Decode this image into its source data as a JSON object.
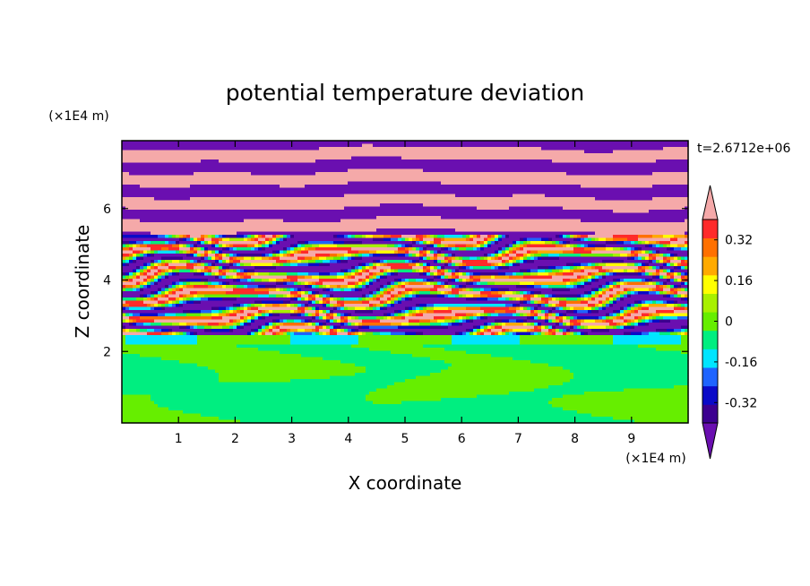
{
  "chart_data": {
    "type": "heatmap",
    "title": "potential temperature deviation",
    "xlabel": "X coordinate",
    "ylabel": "Z coordinate",
    "x_unit": "(×1E4 m)",
    "y_unit": "(×1E4 m)",
    "time_label": "t=2.6712e+06",
    "xlim": [
      0,
      10
    ],
    "ylim": [
      0,
      7.9
    ],
    "x_ticks": [
      1,
      2,
      3,
      4,
      5,
      6,
      7,
      8,
      9
    ],
    "y_ticks": [
      2,
      4,
      6
    ],
    "colorbar": {
      "levels": [
        -0.48,
        -0.4,
        -0.32,
        -0.24,
        -0.16,
        -0.08,
        0,
        0.08,
        0.16,
        0.24,
        0.32,
        0.4,
        0.48
      ],
      "colors": [
        "#6a0fb0",
        "#3c0090",
        "#0a0ac8",
        "#1e64ff",
        "#00e5ff",
        "#00ee80",
        "#66ee00",
        "#a8f000",
        "#ffff00",
        "#ffaa00",
        "#ff7000",
        "#ff2a2a",
        "#f5a9a9"
      ],
      "tick_labels": [
        "0.32",
        "0.16",
        "0",
        "-0.16",
        "-0.32"
      ],
      "tick_values": [
        0.32,
        0.16,
        0,
        -0.16,
        -0.32
      ],
      "extend": "both"
    },
    "bands": [
      {
        "z_start": 0,
        "z_end": 2.5,
        "pattern": "green-mix"
      },
      {
        "z_start": 2.5,
        "z_end": 5.3,
        "pattern": "turbulent-multicolor"
      },
      {
        "z_start": 5.3,
        "z_end": 7.9,
        "pattern": "pink-purple-stripes"
      }
    ]
  }
}
